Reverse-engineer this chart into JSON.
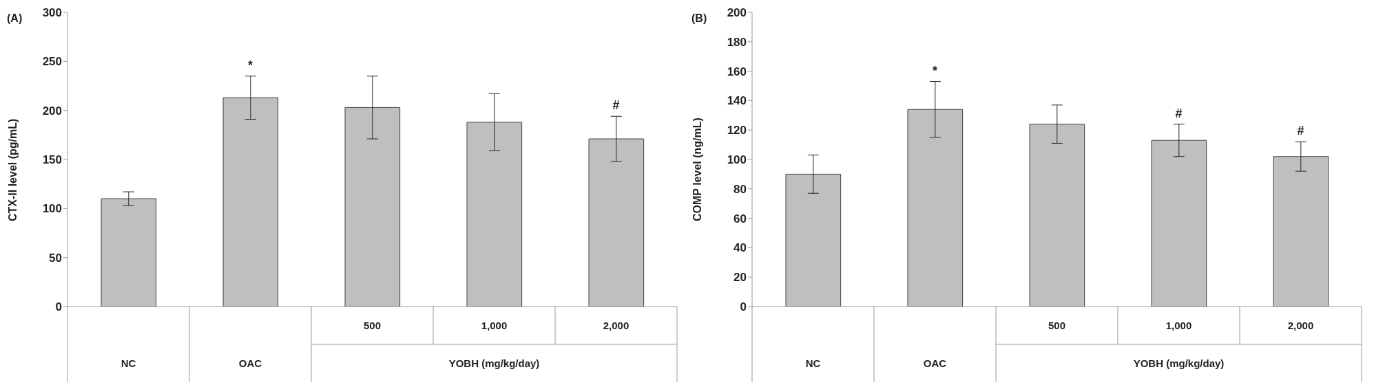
{
  "chart_data": [
    {
      "type": "bar",
      "title": "(A)",
      "ylabel": "CTX-II level (pg/mL)",
      "categories": [
        "NC",
        "OAC",
        "500",
        "1,000",
        "2,000"
      ],
      "values": [
        110,
        213,
        203,
        188,
        171
      ],
      "errors": [
        7,
        22,
        32,
        29,
        23
      ],
      "color": "#bfbfbf",
      "ylim": [
        0,
        300
      ],
      "yticks": [
        0,
        50,
        100,
        150,
        200,
        250,
        300
      ],
      "grid": false,
      "legend": false,
      "value_labels": [
        null,
        "*",
        null,
        null,
        "#"
      ],
      "annotations": [
        "YOBH (mg/kg/day)"
      ]
    },
    {
      "type": "bar",
      "title": "(B)",
      "ylabel": "COMP level (ng/mL)",
      "categories": [
        "NC",
        "OAC",
        "500",
        "1,000",
        "2,000"
      ],
      "values": [
        90,
        134,
        124,
        113,
        102
      ],
      "errors": [
        13,
        19,
        13,
        11,
        10
      ],
      "color": "#bfbfbf",
      "ylim": [
        0,
        200
      ],
      "yticks": [
        0,
        20,
        40,
        60,
        80,
        100,
        120,
        140,
        160,
        180,
        200
      ],
      "grid": false,
      "legend": false,
      "value_labels": [
        null,
        "*",
        null,
        "#",
        "#"
      ],
      "annotations": [
        "YOBH (mg/kg/day)"
      ]
    }
  ]
}
